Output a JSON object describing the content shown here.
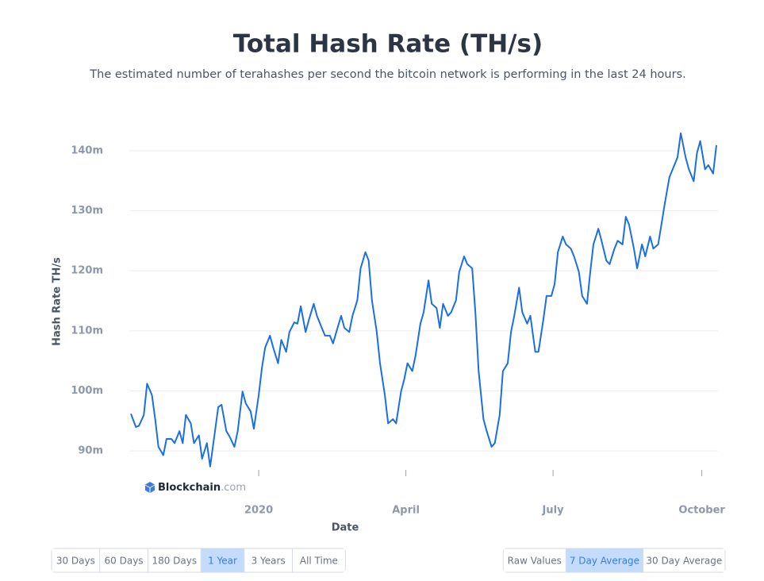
{
  "chart_data": {
    "type": "line",
    "title": "Total Hash Rate (TH/s)",
    "subtitle": "The estimated number of terahashes per second the bitcoin network is performing in the last 24 hours.",
    "ylabel": "Hash Rate TH/s",
    "xlabel": "Date",
    "x": [
      -79,
      -76,
      -74,
      -71,
      -69,
      -66,
      -64,
      -62,
      -59,
      -57,
      -54,
      -52,
      -49,
      -47,
      -45,
      -42,
      -40,
      -37,
      -35,
      -32,
      -30,
      -27,
      -25,
      -23,
      -20,
      -18,
      -15,
      -13,
      -10,
      -8,
      -5,
      -3,
      0,
      2,
      4,
      7,
      9,
      12,
      14,
      17,
      19,
      22,
      24,
      26,
      29,
      31,
      34,
      36,
      39,
      41,
      44,
      46,
      48,
      51,
      53,
      56,
      58,
      61,
      63,
      66,
      68,
      70,
      73,
      75,
      78,
      80,
      83,
      85,
      88,
      90,
      92,
      95,
      97,
      100,
      102,
      105,
      107,
      110,
      112,
      114,
      117,
      119,
      122,
      124,
      127,
      129,
      132,
      134,
      136,
      139,
      141,
      144,
      146,
      149,
      151,
      154,
      156,
      158,
      161,
      163,
      166,
      168,
      171,
      173,
      176,
      178,
      181,
      183,
      185,
      188,
      190,
      193,
      195,
      198,
      200,
      203,
      205,
      207,
      210,
      212,
      215,
      217,
      220,
      222,
      225,
      227,
      229,
      232,
      234,
      237,
      239,
      242,
      244,
      247,
      249,
      251,
      254,
      256,
      259,
      261,
      264,
      266,
      269,
      271,
      273,
      276,
      278,
      281,
      283
    ],
    "series": [
      {
        "name": "Hash Rate",
        "color": "#1b6fe2",
        "values": [
          96.2,
          94,
          94.2,
          96,
          101.2,
          99.3,
          95.3,
          90.7,
          89.3,
          92,
          92,
          91.3,
          93.3,
          91.3,
          96,
          94.6,
          91.3,
          92.6,
          88.7,
          91.3,
          87.4,
          93.3,
          97.3,
          97.7,
          93.3,
          92.4,
          90.7,
          93.3,
          99.9,
          97.9,
          96.6,
          93.7,
          99.3,
          103.9,
          107.2,
          109.2,
          107.2,
          104.6,
          108.5,
          106.5,
          109.8,
          111.4,
          111.2,
          114.1,
          109.8,
          111.8,
          114.5,
          112.5,
          110.5,
          109.2,
          109.2,
          107.9,
          109.8,
          112.5,
          110.5,
          109.8,
          112.5,
          115.1,
          120.4,
          123.1,
          121.7,
          115.1,
          109.8,
          104.6,
          99.3,
          94.6,
          95.3,
          94.6,
          99.9,
          101.9,
          104.6,
          103.3,
          105.9,
          111.2,
          113.1,
          118.4,
          114.5,
          113.8,
          110.5,
          114.5,
          112.5,
          113.1,
          115.1,
          119.8,
          122.4,
          121.1,
          120.4,
          113.1,
          103.3,
          95.3,
          93.3,
          90.7,
          91.3,
          96,
          103.3,
          104.6,
          109.8,
          112.5,
          117.2,
          113.1,
          111.2,
          112.5,
          106.5,
          106.5,
          111.8,
          115.8,
          115.8,
          117.8,
          123.1,
          125.7,
          124.4,
          123.7,
          122.4,
          119.8,
          115.8,
          114.5,
          119.8,
          124.4,
          127,
          125,
          121.7,
          121.1,
          123.7,
          125,
          124.4,
          129,
          127.7,
          123.7,
          120.4,
          124.4,
          122.4,
          125.7,
          123.7,
          124.4,
          127.7,
          131,
          135.6,
          136.9,
          138.9,
          142.9,
          138.9,
          136.9,
          134.9,
          139.6,
          141.6,
          136.9,
          137.6,
          136.2,
          140.9
        ]
      }
    ],
    "xlim": [
      -80,
      284
    ],
    "xticks": [
      {
        "value": 0,
        "label": "2020"
      },
      {
        "value": 91,
        "label": "April"
      },
      {
        "value": 182,
        "label": "July"
      },
      {
        "value": 274,
        "label": "October"
      }
    ],
    "ylim": [
      85,
      145
    ],
    "yticks": [
      {
        "value": 90,
        "label": "90m"
      },
      {
        "value": 100,
        "label": "100m"
      },
      {
        "value": 110,
        "label": "110m"
      },
      {
        "value": 120,
        "label": "120m"
      },
      {
        "value": 130,
        "label": "130m"
      },
      {
        "value": 140,
        "label": "140m"
      }
    ],
    "grid": true
  },
  "brand": {
    "name": "Blockchain",
    "suffix": ".com"
  },
  "controls": {
    "range_buttons": [
      {
        "label": "30 Days"
      },
      {
        "label": "60 Days"
      },
      {
        "label": "180 Days"
      },
      {
        "label": "1 Year",
        "selected": true
      },
      {
        "label": "3 Years"
      },
      {
        "label": "All Time"
      }
    ],
    "average_buttons": [
      {
        "label": "Raw Values"
      },
      {
        "label": "7 Day Average",
        "selected": true
      },
      {
        "label": "30 Day Average"
      }
    ]
  }
}
